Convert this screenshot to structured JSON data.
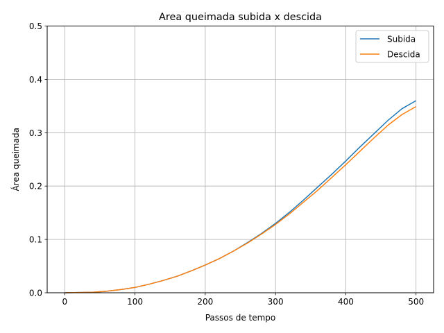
{
  "chart_data": {
    "type": "line",
    "title": "Area queimada subida x descida",
    "xlabel": "Passos de tempo",
    "ylabel": "Área queimada",
    "xlim": [
      -25,
      525
    ],
    "ylim": [
      0,
      0.5
    ],
    "xticks": [
      0,
      100,
      200,
      300,
      400,
      500
    ],
    "xtick_labels": [
      "0",
      "100",
      "200",
      "300",
      "400",
      "500"
    ],
    "yticks": [
      0.0,
      0.1,
      0.2,
      0.3,
      0.4,
      0.5
    ],
    "ytick_labels": [
      "0.0",
      "0.1",
      "0.2",
      "0.3",
      "0.4",
      "0.5"
    ],
    "grid": true,
    "legend_position": "top-right",
    "x": [
      0,
      20,
      40,
      60,
      80,
      100,
      120,
      140,
      160,
      180,
      200,
      220,
      240,
      260,
      280,
      300,
      320,
      340,
      360,
      380,
      400,
      420,
      440,
      460,
      480,
      500
    ],
    "series": [
      {
        "name": "Subida",
        "color": "#1f77b4",
        "values": [
          0.0,
          0.0005,
          0.001,
          0.003,
          0.006,
          0.01,
          0.016,
          0.023,
          0.031,
          0.041,
          0.052,
          0.064,
          0.078,
          0.094,
          0.111,
          0.13,
          0.151,
          0.174,
          0.198,
          0.222,
          0.247,
          0.273,
          0.298,
          0.323,
          0.345,
          0.36
        ]
      },
      {
        "name": "Descida",
        "color": "#ff7f0e",
        "values": [
          0.0,
          0.0005,
          0.001,
          0.003,
          0.006,
          0.01,
          0.016,
          0.023,
          0.031,
          0.041,
          0.052,
          0.064,
          0.078,
          0.093,
          0.11,
          0.128,
          0.148,
          0.17,
          0.192,
          0.216,
          0.24,
          0.265,
          0.29,
          0.314,
          0.334,
          0.349
        ]
      }
    ]
  }
}
